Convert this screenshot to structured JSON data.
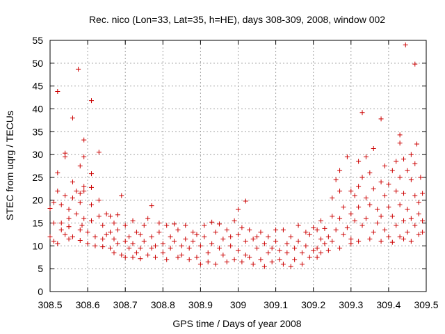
{
  "chart_data": {
    "type": "scatter",
    "title": "Rec. nico (Lon=33, Lat=35, h=HE), days 308-309, 2008, window 002",
    "xlabel": "GPS time / Days of year 2008",
    "ylabel": "STEC from uqrg / TECUs",
    "xlim": [
      308.5,
      309.5
    ],
    "ylim": [
      0,
      55
    ],
    "xticks": [
      308.5,
      308.6,
      308.7,
      308.8,
      308.9,
      309,
      309.1,
      309.2,
      309.3,
      309.4,
      309.5
    ],
    "xtick_labels": [
      "308.5",
      "308.6",
      "308.7",
      "308.8",
      "308.9",
      "309",
      "309.1",
      "309.2",
      "309.3",
      "309.4",
      "309.5"
    ],
    "yticks": [
      0,
      5,
      10,
      15,
      20,
      25,
      30,
      35,
      40,
      45,
      50,
      55
    ],
    "ytick_labels": [
      "0",
      "5",
      "10",
      "15",
      "20",
      "25",
      "30",
      "35",
      "40",
      "45",
      "50",
      "55"
    ],
    "grid": true,
    "marker": "+",
    "color": "#cc0000",
    "series": [
      {
        "name": "STEC",
        "points": [
          [
            308.5,
            18.2
          ],
          [
            308.5,
            12.0
          ],
          [
            308.51,
            19.5
          ],
          [
            308.51,
            11.0
          ],
          [
            308.51,
            15.0
          ],
          [
            308.52,
            26.0
          ],
          [
            308.52,
            22.0
          ],
          [
            308.52,
            43.8
          ],
          [
            308.52,
            10.5
          ],
          [
            308.53,
            13.5
          ],
          [
            308.53,
            19.0
          ],
          [
            308.53,
            15.0
          ],
          [
            308.54,
            30.3
          ],
          [
            308.54,
            29.5
          ],
          [
            308.54,
            21.0
          ],
          [
            308.54,
            12.5
          ],
          [
            308.55,
            18.0
          ],
          [
            308.55,
            11.5
          ],
          [
            308.55,
            16.0
          ],
          [
            308.55,
            14.2
          ],
          [
            308.56,
            38.0
          ],
          [
            308.56,
            24.0
          ],
          [
            308.56,
            20.5
          ],
          [
            308.56,
            12.0
          ],
          [
            308.57,
            17.0
          ],
          [
            308.57,
            22.0
          ],
          [
            308.575,
            48.7
          ],
          [
            308.58,
            27.5
          ],
          [
            308.58,
            21.5
          ],
          [
            308.58,
            13.5
          ],
          [
            308.58,
            19.5
          ],
          [
            308.58,
            11.2
          ],
          [
            308.585,
            14.5
          ],
          [
            308.59,
            33.2
          ],
          [
            308.59,
            29.5
          ],
          [
            308.59,
            23.0
          ],
          [
            308.59,
            22.0
          ],
          [
            308.59,
            16.0
          ],
          [
            308.6,
            13.0
          ],
          [
            308.6,
            10.5
          ],
          [
            308.61,
            41.8
          ],
          [
            308.61,
            25.8
          ],
          [
            308.61,
            22.8
          ],
          [
            308.61,
            19.0
          ],
          [
            308.61,
            15.5
          ],
          [
            308.62,
            12.0
          ],
          [
            308.62,
            10.0
          ],
          [
            308.63,
            30.5
          ],
          [
            308.63,
            20.0
          ],
          [
            308.63,
            16.5
          ],
          [
            308.64,
            14.5
          ],
          [
            308.64,
            11.5
          ],
          [
            308.64,
            9.8
          ],
          [
            308.65,
            17.0
          ],
          [
            308.65,
            12.5
          ],
          [
            308.66,
            16.5
          ],
          [
            308.66,
            9.5
          ],
          [
            308.66,
            13.0
          ],
          [
            308.67,
            15.0
          ],
          [
            308.67,
            11.5
          ],
          [
            308.67,
            8.5
          ],
          [
            308.68,
            16.8
          ],
          [
            308.68,
            13.5
          ],
          [
            308.68,
            10.5
          ],
          [
            308.69,
            21.0
          ],
          [
            308.69,
            8.0
          ],
          [
            308.7,
            14.5
          ],
          [
            308.7,
            11.0
          ],
          [
            308.7,
            7.5
          ],
          [
            308.71,
            12.0
          ],
          [
            308.71,
            9.5
          ],
          [
            308.72,
            15.5
          ],
          [
            308.72,
            7.5
          ],
          [
            308.72,
            10.5
          ],
          [
            308.73,
            13.0
          ],
          [
            308.73,
            8.5
          ],
          [
            308.74,
            12.5
          ],
          [
            308.74,
            7.2
          ],
          [
            308.74,
            9.5
          ],
          [
            308.75,
            14.5
          ],
          [
            308.75,
            11.0
          ],
          [
            308.76,
            16.0
          ],
          [
            308.76,
            8.0
          ],
          [
            308.77,
            18.8
          ],
          [
            308.77,
            12.0
          ],
          [
            308.77,
            9.5
          ],
          [
            308.78,
            7.5
          ],
          [
            308.78,
            10.0
          ],
          [
            308.79,
            15.0
          ],
          [
            308.79,
            13.0
          ],
          [
            308.8,
            10.5
          ],
          [
            308.8,
            8.5
          ],
          [
            308.81,
            14.5
          ],
          [
            308.81,
            7.0
          ],
          [
            308.82,
            12.0
          ],
          [
            308.82,
            9.5
          ],
          [
            308.83,
            14.8
          ],
          [
            308.83,
            11.0
          ],
          [
            308.84,
            7.5
          ],
          [
            308.84,
            13.5
          ],
          [
            308.85,
            10.0
          ],
          [
            308.85,
            8.0
          ],
          [
            308.86,
            14.5
          ],
          [
            308.86,
            11.5
          ],
          [
            308.87,
            7.0
          ],
          [
            308.87,
            9.5
          ],
          [
            308.88,
            13.0
          ],
          [
            308.88,
            11.0
          ],
          [
            308.89,
            12.5
          ],
          [
            308.89,
            7.5
          ],
          [
            308.9,
            10.0
          ],
          [
            308.9,
            6.0
          ],
          [
            308.91,
            14.5
          ],
          [
            308.91,
            12.0
          ],
          [
            308.92,
            8.5
          ],
          [
            308.92,
            6.5
          ],
          [
            308.93,
            15.2
          ],
          [
            308.93,
            10.5
          ],
          [
            308.94,
            13.0
          ],
          [
            308.94,
            6.0
          ],
          [
            308.95,
            14.8
          ],
          [
            308.95,
            9.5
          ],
          [
            308.96,
            11.5
          ],
          [
            308.96,
            8.0
          ],
          [
            308.97,
            13.5
          ],
          [
            308.97,
            6.5
          ],
          [
            308.98,
            12.0
          ],
          [
            308.98,
            10.0
          ],
          [
            308.99,
            15.5
          ],
          [
            308.99,
            7.0
          ],
          [
            309.0,
            18.0
          ],
          [
            309.0,
            12.5
          ],
          [
            309.0,
            9.0
          ],
          [
            309.01,
            14.0
          ],
          [
            309.01,
            6.5
          ],
          [
            309.02,
            19.8
          ],
          [
            309.02,
            11.0
          ],
          [
            309.02,
            8.0
          ],
          [
            309.03,
            13.5
          ],
          [
            309.03,
            7.5
          ],
          [
            309.04,
            11.5
          ],
          [
            309.04,
            6.0
          ],
          [
            309.05,
            9.5
          ],
          [
            309.05,
            12.0
          ],
          [
            309.06,
            13.0
          ],
          [
            309.06,
            7.0
          ],
          [
            309.07,
            10.5
          ],
          [
            309.07,
            5.5
          ],
          [
            309.08,
            12.0
          ],
          [
            309.08,
            8.5
          ],
          [
            309.09,
            9.5
          ],
          [
            309.09,
            6.5
          ],
          [
            309.1,
            13.5
          ],
          [
            309.1,
            11.0
          ],
          [
            309.11,
            7.0
          ],
          [
            309.11,
            9.0
          ],
          [
            309.12,
            13.5
          ],
          [
            309.12,
            6.0
          ],
          [
            309.13,
            10.5
          ],
          [
            309.13,
            8.5
          ],
          [
            309.14,
            12.0
          ],
          [
            309.14,
            5.5
          ],
          [
            309.15,
            9.5
          ],
          [
            309.15,
            7.0
          ],
          [
            309.16,
            14.5
          ],
          [
            309.16,
            11.0
          ],
          [
            309.17,
            6.0
          ],
          [
            309.17,
            8.5
          ],
          [
            309.18,
            13.0
          ],
          [
            309.18,
            10.0
          ],
          [
            309.19,
            7.5
          ],
          [
            309.19,
            12.5
          ],
          [
            309.2,
            9.0
          ],
          [
            309.2,
            14.0
          ],
          [
            309.21,
            13.5
          ],
          [
            309.21,
            9.5
          ],
          [
            309.21,
            7.5
          ],
          [
            309.22,
            15.5
          ],
          [
            309.22,
            11.5
          ],
          [
            309.22,
            8.5
          ],
          [
            309.23,
            13.8
          ],
          [
            309.23,
            10.5
          ],
          [
            309.24,
            12.0
          ],
          [
            309.24,
            9.0
          ],
          [
            309.25,
            16.5
          ],
          [
            309.25,
            20.5
          ],
          [
            309.25,
            11.0
          ],
          [
            309.26,
            24.5
          ],
          [
            309.26,
            13.5
          ],
          [
            309.27,
            26.5
          ],
          [
            309.27,
            22.0
          ],
          [
            309.27,
            16.0
          ],
          [
            309.27,
            9.5
          ],
          [
            309.28,
            18.5
          ],
          [
            309.28,
            12.5
          ],
          [
            309.29,
            29.5
          ],
          [
            309.29,
            14.0
          ],
          [
            309.3,
            22.0
          ],
          [
            309.3,
            17.0
          ],
          [
            309.3,
            11.5
          ],
          [
            309.3,
            10.5
          ],
          [
            309.31,
            21.0
          ],
          [
            309.31,
            15.5
          ],
          [
            309.32,
            28.5
          ],
          [
            309.32,
            23.0
          ],
          [
            309.32,
            18.5
          ],
          [
            309.32,
            11.0
          ],
          [
            309.33,
            39.2
          ],
          [
            309.33,
            25.0
          ],
          [
            309.33,
            14.5
          ],
          [
            309.34,
            29.5
          ],
          [
            309.34,
            20.5
          ],
          [
            309.34,
            16.0
          ],
          [
            309.35,
            26.0
          ],
          [
            309.35,
            19.0
          ],
          [
            309.35,
            11.5
          ],
          [
            309.36,
            31.3
          ],
          [
            309.36,
            22.5
          ],
          [
            309.36,
            13.0
          ],
          [
            309.37,
            18.0
          ],
          [
            309.37,
            15.0
          ],
          [
            309.38,
            37.8
          ],
          [
            309.38,
            24.0
          ],
          [
            309.38,
            16.5
          ],
          [
            309.38,
            11.0
          ],
          [
            309.39,
            27.5
          ],
          [
            309.39,
            21.0
          ],
          [
            309.39,
            13.5
          ],
          [
            309.4,
            23.5
          ],
          [
            309.4,
            18.5
          ],
          [
            309.4,
            12.0
          ],
          [
            309.41,
            26.5
          ],
          [
            309.41,
            16.5
          ],
          [
            309.41,
            10.8
          ],
          [
            309.42,
            28.5
          ],
          [
            309.42,
            22.0
          ],
          [
            309.42,
            14.5
          ],
          [
            309.43,
            34.3
          ],
          [
            309.43,
            32.5
          ],
          [
            309.43,
            25.0
          ],
          [
            309.43,
            19.0
          ],
          [
            309.43,
            12.0
          ],
          [
            309.44,
            29.0
          ],
          [
            309.44,
            21.5
          ],
          [
            309.44,
            15.5
          ],
          [
            309.44,
            11.5
          ],
          [
            309.445,
            54.0
          ],
          [
            309.45,
            26.5
          ],
          [
            309.45,
            18.0
          ],
          [
            309.45,
            13.0
          ],
          [
            309.46,
            30.0
          ],
          [
            309.46,
            24.5
          ],
          [
            309.46,
            16.0
          ],
          [
            309.46,
            11.0
          ],
          [
            309.47,
            49.8
          ],
          [
            309.47,
            28.0
          ],
          [
            309.47,
            21.0
          ],
          [
            309.47,
            14.5
          ],
          [
            309.475,
            32.3
          ],
          [
            309.48,
            19.5
          ],
          [
            309.48,
            17.0
          ],
          [
            309.48,
            12.5
          ],
          [
            309.485,
            25.0
          ],
          [
            309.49,
            21.5
          ],
          [
            309.49,
            15.5
          ],
          [
            309.49,
            13.0
          ]
        ]
      }
    ]
  }
}
